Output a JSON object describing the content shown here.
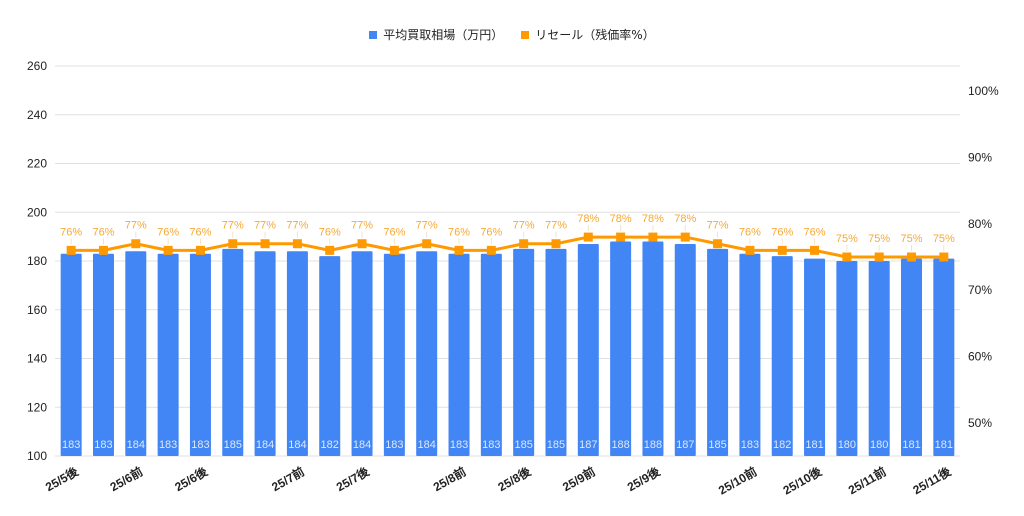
{
  "legend": {
    "bar_label": "平均買取相場（万円）",
    "line_label": "リセール（残価率%）"
  },
  "colors": {
    "bar": "#4285f4",
    "line": "#ff9900",
    "line_label": "#f6a934",
    "grid": "#e0e0e0",
    "axis_text": "#222222",
    "bar_value_text": "#dce8fd"
  },
  "chart_data": {
    "type": "bar",
    "title": "",
    "xlabel": "",
    "ylabel": "",
    "ylim": [
      100,
      260
    ],
    "y_ticks": [
      100,
      120,
      140,
      160,
      180,
      200,
      220,
      240,
      260
    ],
    "y2lim": [
      45,
      105
    ],
    "y2_ticks": [
      "50%",
      "60%",
      "70%",
      "80%",
      "90%",
      "100%"
    ],
    "y2_tick_values": [
      50,
      60,
      70,
      80,
      90,
      100
    ],
    "legend_position": "top",
    "grid": true,
    "categories": [
      "25/5後",
      "",
      "25/6前",
      "",
      "25/6後",
      "",
      "",
      "25/7前",
      "",
      "25/7後",
      "",
      "",
      "25/8前",
      "",
      "25/8後",
      "",
      "25/9前",
      "",
      "25/9後",
      "",
      "",
      "25/10前",
      "",
      "25/10後",
      "",
      "25/11前",
      "",
      "25/11後"
    ],
    "x_tick_labels": [
      {
        "index": 0,
        "label": "25/5後"
      },
      {
        "index": 2,
        "label": "25/6前"
      },
      {
        "index": 4,
        "label": "25/6後"
      },
      {
        "index": 7,
        "label": "25/7前"
      },
      {
        "index": 9,
        "label": "25/7後"
      },
      {
        "index": 12,
        "label": "25/8前"
      },
      {
        "index": 14,
        "label": "25/8後"
      },
      {
        "index": 16,
        "label": "25/9前"
      },
      {
        "index": 18,
        "label": "25/9後"
      },
      {
        "index": 21,
        "label": "25/10前"
      },
      {
        "index": 23,
        "label": "25/10後"
      },
      {
        "index": 25,
        "label": "25/11前"
      },
      {
        "index": 27,
        "label": "25/11後"
      }
    ],
    "series": [
      {
        "name": "平均買取相場（万円）",
        "type": "bar",
        "axis": "left",
        "values": [
          183,
          183,
          184,
          183,
          183,
          185,
          184,
          184,
          182,
          184,
          183,
          184,
          183,
          183,
          185,
          185,
          187,
          188,
          188,
          187,
          185,
          183,
          182,
          181,
          180,
          180,
          181,
          181
        ]
      },
      {
        "name": "リセール（残価率%）",
        "type": "line",
        "axis": "right",
        "values": [
          76,
          76,
          77,
          76,
          76,
          77,
          77,
          77,
          76,
          77,
          76,
          77,
          76,
          76,
          77,
          77,
          78,
          78,
          78,
          78,
          77,
          76,
          76,
          76,
          75,
          75,
          75,
          75
        ]
      }
    ]
  }
}
